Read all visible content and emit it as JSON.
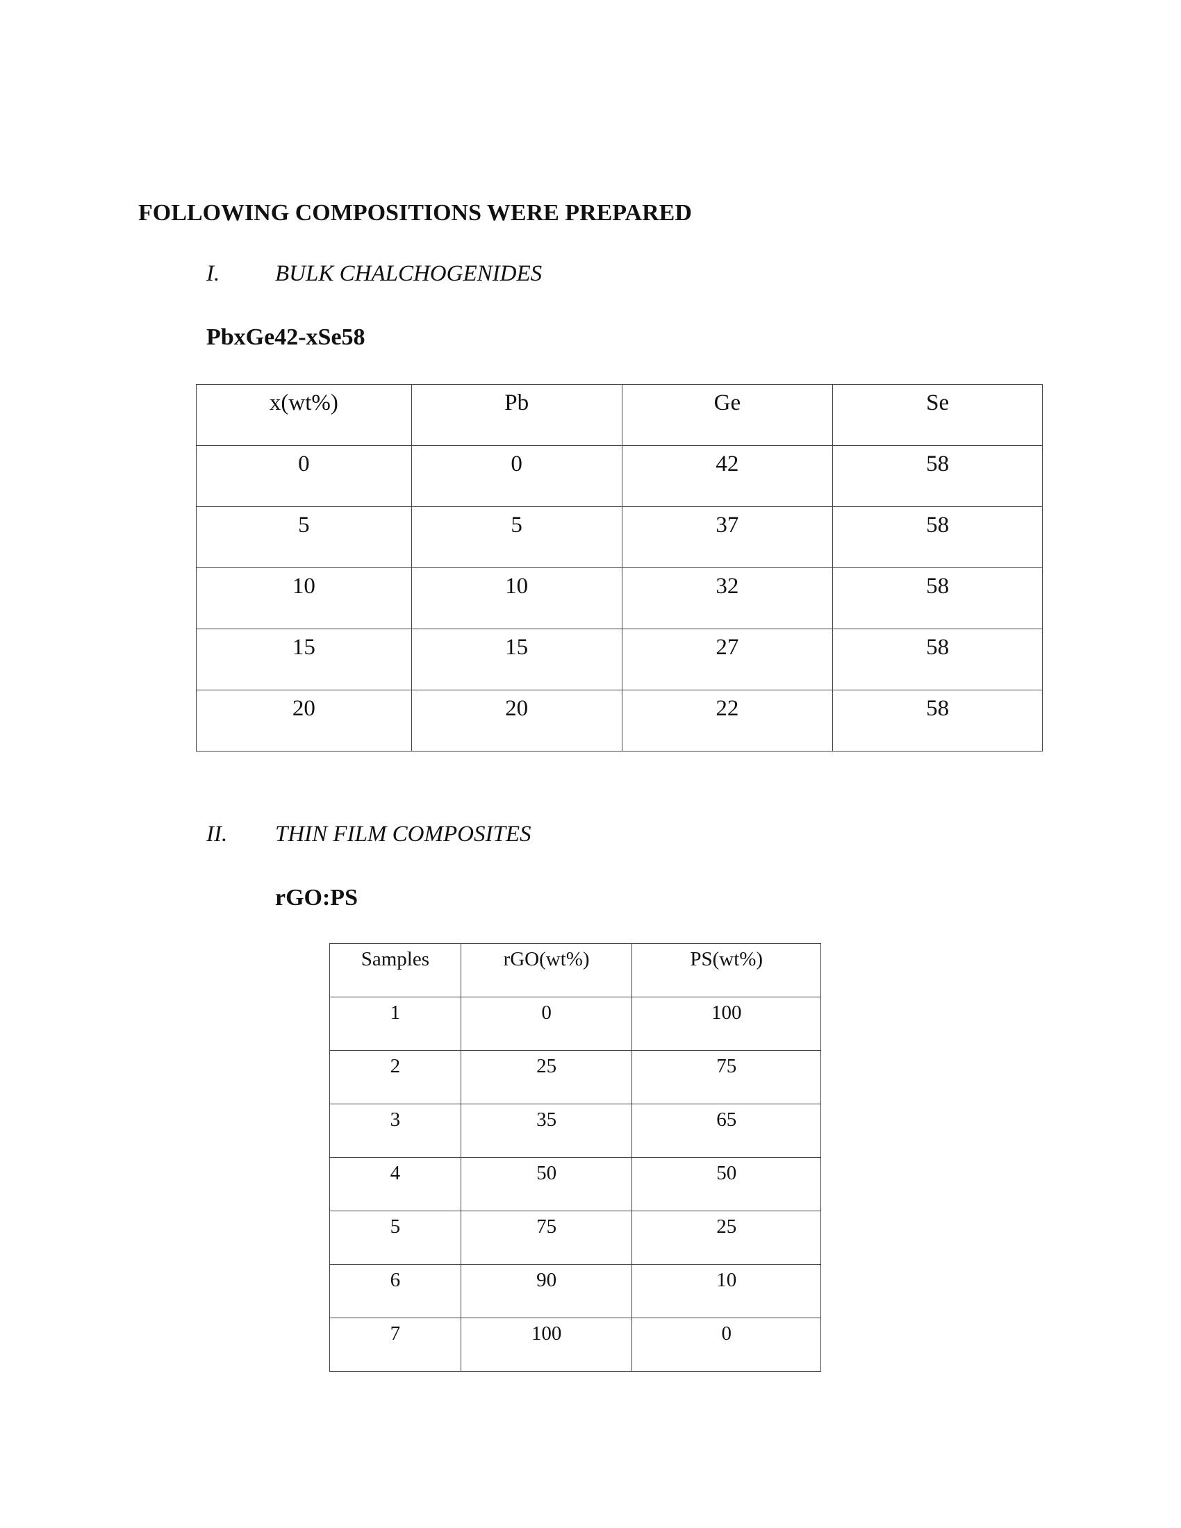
{
  "title": "FOLLOWING COMPOSITIONS WERE PREPARED",
  "section1": {
    "numeral": "I.",
    "heading": "BULK CHALCHOGENIDES",
    "formula": "PbxGe42-xSe58",
    "table": {
      "headers": [
        "x(wt%)",
        "Pb",
        "Ge",
        "Se"
      ],
      "rows": [
        [
          "0",
          "0",
          "42",
          "58"
        ],
        [
          "5",
          "5",
          "37",
          "58"
        ],
        [
          "10",
          "10",
          "32",
          "58"
        ],
        [
          "15",
          "15",
          "27",
          "58"
        ],
        [
          "20",
          "20",
          "22",
          "58"
        ]
      ]
    }
  },
  "section2": {
    "numeral": "II.",
    "heading": "THIN FILM COMPOSITES",
    "formula": "rGO:PS",
    "table": {
      "headers": [
        "Samples",
        "rGO(wt%)",
        "PS(wt%)"
      ],
      "rows": [
        [
          "1",
          "0",
          "100"
        ],
        [
          "2",
          "25",
          "75"
        ],
        [
          "3",
          "35",
          "65"
        ],
        [
          "4",
          "50",
          "50"
        ],
        [
          "5",
          "75",
          "25"
        ],
        [
          "6",
          "90",
          "10"
        ],
        [
          "7",
          "100",
          "0"
        ]
      ]
    }
  }
}
